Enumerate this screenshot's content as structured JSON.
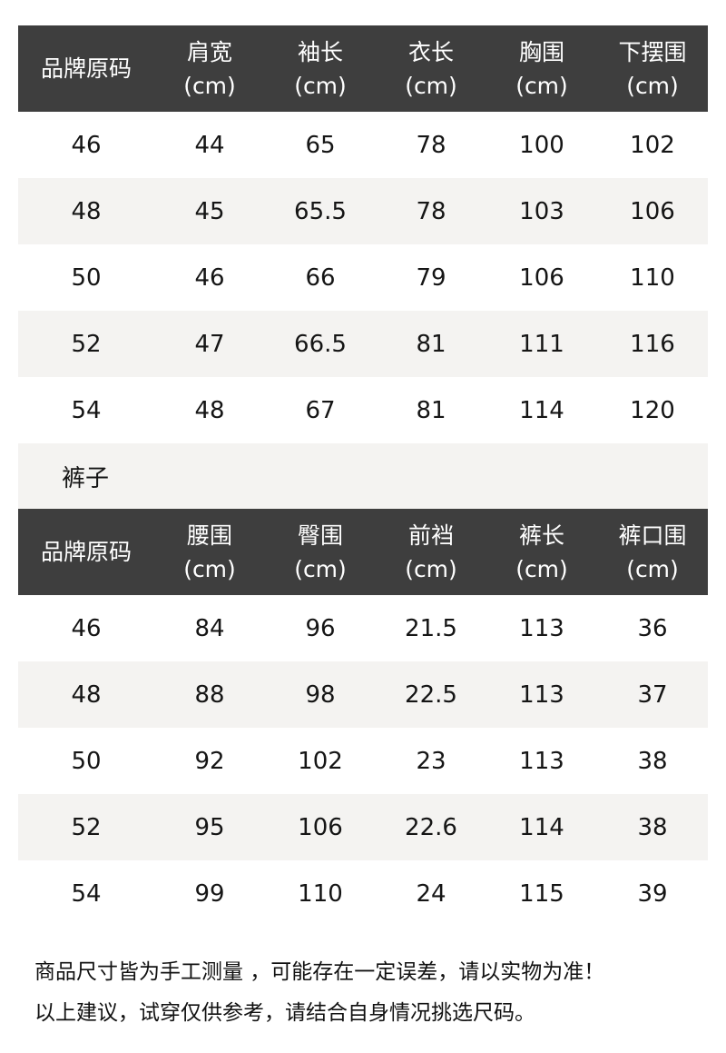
{
  "colors": {
    "header_bg": "#3e3e3e",
    "header_text": "#ffffff",
    "row_alt_bg": "#f4f3f1",
    "body_text": "#151515"
  },
  "section_label_pants": "裤子",
  "tables": [
    {
      "name": "tops-size-table",
      "headers": [
        {
          "label": "品牌原码",
          "unit": ""
        },
        {
          "label": "肩宽",
          "unit": "(cm)"
        },
        {
          "label": "袖长",
          "unit": "(cm)"
        },
        {
          "label": "衣长",
          "unit": "(cm)"
        },
        {
          "label": "胸围",
          "unit": "(cm)"
        },
        {
          "label": "下摆围",
          "unit": "(cm)"
        }
      ],
      "rows": [
        [
          "46",
          "44",
          "65",
          "78",
          "100",
          "102"
        ],
        [
          "48",
          "45",
          "65.5",
          "78",
          "103",
          "106"
        ],
        [
          "50",
          "46",
          "66",
          "79",
          "106",
          "110"
        ],
        [
          "52",
          "47",
          "66.5",
          "81",
          "111",
          "116"
        ],
        [
          "54",
          "48",
          "67",
          "81",
          "114",
          "120"
        ]
      ]
    },
    {
      "name": "pants-size-table",
      "headers": [
        {
          "label": "品牌原码",
          "unit": ""
        },
        {
          "label": "腰围",
          "unit": "(cm)"
        },
        {
          "label": "臀围",
          "unit": "(cm)"
        },
        {
          "label": "前裆",
          "unit": "(cm)"
        },
        {
          "label": "裤长",
          "unit": "(cm)"
        },
        {
          "label": "裤口围",
          "unit": "(cm)"
        }
      ],
      "rows": [
        [
          "46",
          "84",
          "96",
          "21.5",
          "113",
          "36"
        ],
        [
          "48",
          "88",
          "98",
          "22.5",
          "113",
          "37"
        ],
        [
          "50",
          "92",
          "102",
          "23",
          "113",
          "38"
        ],
        [
          "52",
          "95",
          "106",
          "22.6",
          "114",
          "38"
        ],
        [
          "54",
          "99",
          "110",
          "24",
          "115",
          "39"
        ]
      ]
    }
  ],
  "footer": {
    "line1": "商品尺寸皆为手工测量 ，可能存在一定误差，请以实物为准！",
    "line2": "以上建议，试穿仅供参考，请结合自身情况挑选尺码。"
  }
}
